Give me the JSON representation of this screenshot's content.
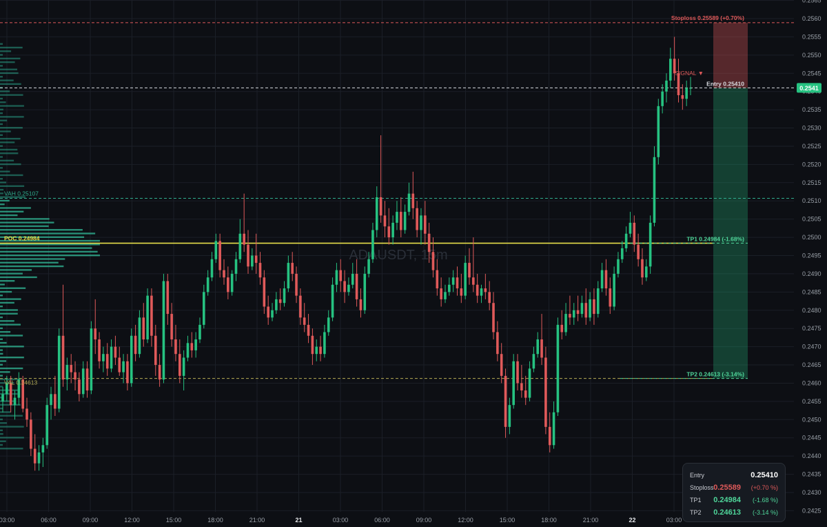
{
  "chart_data": {
    "type": "candlestick",
    "watermark": "ADAUSDT, 15m",
    "y_axis": {
      "min": 0.2425,
      "max": 0.2565,
      "ticks": [
        "0.2425",
        "0.2430",
        "0.2435",
        "0.2440",
        "0.2445",
        "0.2450",
        "0.2455",
        "0.2460",
        "0.2465",
        "0.2470",
        "0.2475",
        "0.2480",
        "0.2485",
        "0.2490",
        "0.2495",
        "0.2500",
        "0.2505",
        "0.2510",
        "0.2515",
        "0.2520",
        "0.2525",
        "0.2530",
        "0.2535",
        "0.2540",
        "0.2545",
        "0.2550",
        "0.2555",
        "0.2560",
        "0.2565"
      ]
    },
    "x_axis": {
      "ticks": [
        "03:00",
        "06:00",
        "09:00",
        "12:00",
        "15:00",
        "18:00",
        "21:00",
        "21",
        "03:00",
        "06:00",
        "09:00",
        "12:00",
        "15:00",
        "18:00",
        "21:00",
        "22",
        "03:00"
      ],
      "bold_ticks": [
        "21",
        "22"
      ]
    },
    "current_price": {
      "label": "0.2541",
      "value": 0.2541,
      "color": "#26c281"
    },
    "levels": [
      {
        "name": "stoploss",
        "label": "Stoploss 0.25589 (+0.70%)",
        "value": 0.25589,
        "color": "#e05a5a",
        "style": "dashed"
      },
      {
        "name": "entry",
        "label": "Entry 0.25410",
        "value": 0.2541,
        "color": "#d8dbe0",
        "style": "dashed"
      },
      {
        "name": "vah",
        "label": "VAH 0.25107",
        "value": 0.25107,
        "color": "#2fae8f",
        "style": "dashed"
      },
      {
        "name": "poc",
        "label": "POC 0.24984",
        "value": 0.24984,
        "color": "#e8e04a",
        "style": "solid"
      },
      {
        "name": "tp1",
        "label": "TP1 0.24984 (-1.68%)",
        "value": 0.24984,
        "color": "#4fd69a",
        "style": "dashed"
      },
      {
        "name": "val",
        "label": "VAL 0.24613",
        "value": 0.24613,
        "color": "#b7ad55",
        "style": "dashed"
      },
      {
        "name": "tp2",
        "label": "TP2 0.24613 (-3.14%)",
        "value": 0.24613,
        "color": "#4fd69a",
        "style": "dashed"
      }
    ],
    "signal": {
      "label": "SIGNAL ▼",
      "color": "#e05a5a",
      "price": 0.2543
    },
    "risk_zone": {
      "from": 0.2541,
      "to": 0.25589,
      "color": "#e05a5a"
    },
    "reward_zone": {
      "from": 0.24613,
      "to": 0.2541,
      "color": "#26c281"
    },
    "colors": {
      "bull": "#26c281",
      "bear": "#e05a5a",
      "background": "#0d0f14",
      "grid": "#1b1f27",
      "profile": "#2a9d83",
      "profile_value_area": "#2fae8f"
    },
    "candles_ohlc": [
      [
        0.2455,
        0.2459,
        0.2452,
        0.2457
      ],
      [
        0.2457,
        0.2462,
        0.2455,
        0.246
      ],
      [
        0.246,
        0.2462,
        0.2452,
        0.2454
      ],
      [
        0.2454,
        0.2458,
        0.245,
        0.2456
      ],
      [
        0.2456,
        0.2463,
        0.2454,
        0.2461
      ],
      [
        0.2461,
        0.2462,
        0.2452,
        0.2453
      ],
      [
        0.2453,
        0.2456,
        0.2448,
        0.245
      ],
      [
        0.245,
        0.2452,
        0.244,
        0.2442
      ],
      [
        0.2442,
        0.2446,
        0.2436,
        0.2438
      ],
      [
        0.2438,
        0.2443,
        0.2436,
        0.2441
      ],
      [
        0.2441,
        0.2445,
        0.2437,
        0.2443
      ],
      [
        0.2443,
        0.2456,
        0.2442,
        0.2454
      ],
      [
        0.2454,
        0.2459,
        0.245,
        0.2457
      ],
      [
        0.2457,
        0.2462,
        0.2451,
        0.2453
      ],
      [
        0.2453,
        0.2475,
        0.2452,
        0.2473
      ],
      [
        0.2473,
        0.2487,
        0.2459,
        0.2461
      ],
      [
        0.2461,
        0.2467,
        0.2458,
        0.2465
      ],
      [
        0.2465,
        0.2468,
        0.246,
        0.2463
      ],
      [
        0.2463,
        0.2466,
        0.2458,
        0.2461
      ],
      [
        0.2461,
        0.2463,
        0.2455,
        0.2457
      ],
      [
        0.2457,
        0.2466,
        0.2456,
        0.2464
      ],
      [
        0.2464,
        0.2466,
        0.2456,
        0.2458
      ],
      [
        0.2458,
        0.2477,
        0.2457,
        0.2475
      ],
      [
        0.2475,
        0.2483,
        0.2468,
        0.2472
      ],
      [
        0.2472,
        0.2474,
        0.2464,
        0.2466
      ],
      [
        0.2466,
        0.247,
        0.2463,
        0.2468
      ],
      [
        0.2468,
        0.2471,
        0.2462,
        0.2464
      ],
      [
        0.2464,
        0.2472,
        0.2463,
        0.247
      ],
      [
        0.247,
        0.2473,
        0.2465,
        0.2467
      ],
      [
        0.2467,
        0.247,
        0.2462,
        0.2463
      ],
      [
        0.2463,
        0.2468,
        0.246,
        0.2466
      ],
      [
        0.2466,
        0.2468,
        0.2458,
        0.246
      ],
      [
        0.246,
        0.2475,
        0.2459,
        0.2473
      ],
      [
        0.2473,
        0.2476,
        0.2466,
        0.2468
      ],
      [
        0.2468,
        0.248,
        0.2467,
        0.2478
      ],
      [
        0.2478,
        0.2482,
        0.247,
        0.2472
      ],
      [
        0.2472,
        0.2486,
        0.2471,
        0.2484
      ],
      [
        0.2484,
        0.2486,
        0.247,
        0.2473
      ],
      [
        0.2473,
        0.2476,
        0.2462,
        0.2465
      ],
      [
        0.2465,
        0.2468,
        0.2459,
        0.2461
      ],
      [
        0.2461,
        0.249,
        0.246,
        0.2488
      ],
      [
        0.2488,
        0.249,
        0.2476,
        0.2479
      ],
      [
        0.2479,
        0.2482,
        0.247,
        0.2472
      ],
      [
        0.2472,
        0.2476,
        0.2466,
        0.2468
      ],
      [
        0.2468,
        0.2472,
        0.246,
        0.2462
      ],
      [
        0.2462,
        0.2469,
        0.2458,
        0.2467
      ],
      [
        0.2467,
        0.2473,
        0.2466,
        0.2471
      ],
      [
        0.2471,
        0.2474,
        0.2467,
        0.2469
      ],
      [
        0.2469,
        0.2474,
        0.2467,
        0.2472
      ],
      [
        0.2472,
        0.2478,
        0.2471,
        0.2476
      ],
      [
        0.2476,
        0.2487,
        0.2475,
        0.2485
      ],
      [
        0.2485,
        0.2491,
        0.2484,
        0.2489
      ],
      [
        0.2489,
        0.2496,
        0.2488,
        0.2494
      ],
      [
        0.2494,
        0.2501,
        0.2493,
        0.2499
      ],
      [
        0.2499,
        0.2501,
        0.2489,
        0.2491
      ],
      [
        0.2491,
        0.2494,
        0.2487,
        0.2489
      ],
      [
        0.2489,
        0.2492,
        0.2483,
        0.2485
      ],
      [
        0.2485,
        0.2491,
        0.2484,
        0.249
      ],
      [
        0.249,
        0.2496,
        0.2488,
        0.2494
      ],
      [
        0.2494,
        0.2505,
        0.2493,
        0.2501
      ],
      [
        0.2501,
        0.2512,
        0.2496,
        0.2498
      ],
      [
        0.2498,
        0.2502,
        0.249,
        0.2492
      ],
      [
        0.2492,
        0.2497,
        0.2491,
        0.2495
      ],
      [
        0.2495,
        0.2501,
        0.249,
        0.2493
      ],
      [
        0.2493,
        0.2496,
        0.2487,
        0.2489
      ],
      [
        0.2489,
        0.2491,
        0.2479,
        0.2481
      ],
      [
        0.2481,
        0.2484,
        0.2476,
        0.2478
      ],
      [
        0.2478,
        0.2482,
        0.2477,
        0.248
      ],
      [
        0.248,
        0.2485,
        0.2479,
        0.2483
      ],
      [
        0.2483,
        0.2486,
        0.248,
        0.2482
      ],
      [
        0.2482,
        0.2488,
        0.2481,
        0.2486
      ],
      [
        0.2486,
        0.2495,
        0.2485,
        0.2493
      ],
      [
        0.2493,
        0.2496,
        0.2488,
        0.249
      ],
      [
        0.249,
        0.2492,
        0.2482,
        0.2484
      ],
      [
        0.2484,
        0.2486,
        0.2476,
        0.2478
      ],
      [
        0.2478,
        0.2482,
        0.2474,
        0.2476
      ],
      [
        0.2476,
        0.2479,
        0.2471,
        0.2473
      ],
      [
        0.2473,
        0.2475,
        0.2465,
        0.2468
      ],
      [
        0.2468,
        0.2472,
        0.2466,
        0.247
      ],
      [
        0.247,
        0.2473,
        0.2466,
        0.2468
      ],
      [
        0.2468,
        0.2476,
        0.2467,
        0.2474
      ],
      [
        0.2474,
        0.248,
        0.2473,
        0.2478
      ],
      [
        0.2478,
        0.2489,
        0.2477,
        0.2487
      ],
      [
        0.2487,
        0.2493,
        0.2485,
        0.2491
      ],
      [
        0.2491,
        0.2494,
        0.2485,
        0.2488
      ],
      [
        0.2488,
        0.2491,
        0.2482,
        0.2485
      ],
      [
        0.2485,
        0.2489,
        0.2484,
        0.2487
      ],
      [
        0.2487,
        0.2493,
        0.2486,
        0.249
      ],
      [
        0.249,
        0.2494,
        0.2481,
        0.2483
      ],
      [
        0.2483,
        0.2486,
        0.2478,
        0.248
      ],
      [
        0.248,
        0.2492,
        0.2479,
        0.249
      ],
      [
        0.249,
        0.2496,
        0.2489,
        0.2494
      ],
      [
        0.2494,
        0.2504,
        0.2493,
        0.2502
      ],
      [
        0.2502,
        0.2514,
        0.25,
        0.2511
      ],
      [
        0.2511,
        0.2528,
        0.2504,
        0.2506
      ],
      [
        0.2506,
        0.251,
        0.25,
        0.2503
      ],
      [
        0.2503,
        0.2508,
        0.2498,
        0.25
      ],
      [
        0.25,
        0.2506,
        0.2498,
        0.2504
      ],
      [
        0.2504,
        0.251,
        0.2502,
        0.2507
      ],
      [
        0.2507,
        0.2511,
        0.25,
        0.2502
      ],
      [
        0.2502,
        0.2509,
        0.2501,
        0.2507
      ],
      [
        0.2507,
        0.2515,
        0.2506,
        0.2512
      ],
      [
        0.2512,
        0.2518,
        0.2505,
        0.2508
      ],
      [
        0.2508,
        0.251,
        0.25,
        0.2502
      ],
      [
        0.2502,
        0.2508,
        0.2498,
        0.2506
      ],
      [
        0.2506,
        0.251,
        0.2498,
        0.2501
      ],
      [
        0.2501,
        0.2504,
        0.2493,
        0.2496
      ],
      [
        0.2496,
        0.25,
        0.2489,
        0.2491
      ],
      [
        0.2491,
        0.2494,
        0.2484,
        0.2486
      ],
      [
        0.2486,
        0.2489,
        0.2481,
        0.2483
      ],
      [
        0.2483,
        0.2487,
        0.2482,
        0.2485
      ],
      [
        0.2485,
        0.2489,
        0.2484,
        0.2487
      ],
      [
        0.2487,
        0.2491,
        0.2485,
        0.2489
      ],
      [
        0.2489,
        0.2492,
        0.2484,
        0.2486
      ],
      [
        0.2486,
        0.249,
        0.2482,
        0.2484
      ],
      [
        0.2484,
        0.2495,
        0.2483,
        0.2493
      ],
      [
        0.2493,
        0.2497,
        0.2487,
        0.2489
      ],
      [
        0.2489,
        0.25,
        0.2485,
        0.2487
      ],
      [
        0.2487,
        0.249,
        0.2482,
        0.2484
      ],
      [
        0.2484,
        0.2487,
        0.2482,
        0.2486
      ],
      [
        0.2486,
        0.249,
        0.2483,
        0.2485
      ],
      [
        0.2485,
        0.2488,
        0.248,
        0.2482
      ],
      [
        0.2482,
        0.2485,
        0.2472,
        0.2474
      ],
      [
        0.2474,
        0.2477,
        0.2466,
        0.2468
      ],
      [
        0.2468,
        0.2471,
        0.246,
        0.2462
      ],
      [
        0.2462,
        0.2464,
        0.2445,
        0.2448
      ],
      [
        0.2448,
        0.2456,
        0.2446,
        0.2454
      ],
      [
        0.2454,
        0.2468,
        0.2453,
        0.2466
      ],
      [
        0.2466,
        0.2468,
        0.2458,
        0.246
      ],
      [
        0.246,
        0.2465,
        0.2456,
        0.2458
      ],
      [
        0.2458,
        0.2462,
        0.2454,
        0.2456
      ],
      [
        0.2456,
        0.2466,
        0.2455,
        0.2464
      ],
      [
        0.2464,
        0.247,
        0.2463,
        0.2468
      ],
      [
        0.2468,
        0.2474,
        0.2467,
        0.2472
      ],
      [
        0.2472,
        0.2479,
        0.2465,
        0.2467
      ],
      [
        0.2467,
        0.247,
        0.2446,
        0.2448
      ],
      [
        0.2448,
        0.2452,
        0.2441,
        0.2443
      ],
      [
        0.2443,
        0.2455,
        0.2442,
        0.2452
      ],
      [
        0.2452,
        0.2478,
        0.2451,
        0.2476
      ],
      [
        0.2476,
        0.248,
        0.2472,
        0.2474
      ],
      [
        0.2474,
        0.2482,
        0.2473,
        0.2479
      ],
      [
        0.2479,
        0.2484,
        0.2476,
        0.2478
      ],
      [
        0.2478,
        0.2482,
        0.2476,
        0.248
      ],
      [
        0.248,
        0.2484,
        0.2477,
        0.2479
      ],
      [
        0.2479,
        0.2484,
        0.2478,
        0.2482
      ],
      [
        0.2482,
        0.2486,
        0.2476,
        0.2478
      ],
      [
        0.2478,
        0.2485,
        0.2477,
        0.2483
      ],
      [
        0.2483,
        0.2486,
        0.2476,
        0.2479
      ],
      [
        0.2479,
        0.2488,
        0.2478,
        0.2486
      ],
      [
        0.2486,
        0.2493,
        0.2485,
        0.2491
      ],
      [
        0.2491,
        0.2494,
        0.2484,
        0.2486
      ],
      [
        0.2486,
        0.2489,
        0.2479,
        0.2481
      ],
      [
        0.2481,
        0.2492,
        0.248,
        0.249
      ],
      [
        0.249,
        0.2496,
        0.2489,
        0.2494
      ],
      [
        0.2494,
        0.2499,
        0.2493,
        0.2497
      ],
      [
        0.2497,
        0.2503,
        0.2496,
        0.2501
      ],
      [
        0.2501,
        0.2507,
        0.25,
        0.2504
      ],
      [
        0.2504,
        0.2506,
        0.2496,
        0.2498
      ],
      [
        0.2498,
        0.2501,
        0.2492,
        0.2494
      ],
      [
        0.2494,
        0.2497,
        0.2487,
        0.2489
      ],
      [
        0.2489,
        0.2494,
        0.2488,
        0.2492
      ],
      [
        0.2492,
        0.2506,
        0.249,
        0.2504
      ],
      [
        0.2504,
        0.2525,
        0.2503,
        0.2522
      ],
      [
        0.2522,
        0.2538,
        0.252,
        0.2536
      ],
      [
        0.2536,
        0.2542,
        0.2534,
        0.254
      ],
      [
        0.254,
        0.2545,
        0.2537,
        0.2543
      ],
      [
        0.2543,
        0.2552,
        0.2541,
        0.2549
      ],
      [
        0.2549,
        0.2555,
        0.2543,
        0.2545
      ],
      [
        0.2545,
        0.2549,
        0.2537,
        0.2539
      ],
      [
        0.2539,
        0.2542,
        0.2535,
        0.2538
      ],
      [
        0.2538,
        0.2543,
        0.2536,
        0.2541
      ],
      [
        0.2541,
        0.2544,
        0.2539,
        0.2541
      ]
    ],
    "volume_profile_note": "horizontal volume profile on left edge"
  },
  "info_panel": {
    "rows": [
      {
        "key": "Entry",
        "value": "0.25410",
        "pct": "",
        "color": "#ffffff"
      },
      {
        "key": "Stoploss",
        "value": "0.25589",
        "pct": "(+0.70 %)",
        "color": "#e05a5a"
      },
      {
        "key": "TP1",
        "value": "0.24984",
        "pct": "(-1.68 %)",
        "color": "#4fd69a"
      },
      {
        "key": "TP2",
        "value": "0.24613",
        "pct": "(-3.14 %)",
        "color": "#4fd69a"
      }
    ]
  }
}
